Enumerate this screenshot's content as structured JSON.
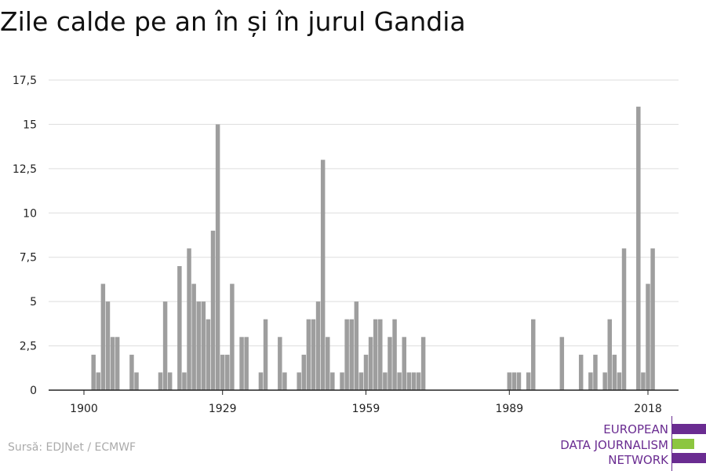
{
  "title": "Zile calde pe an în și în jurul Gandia",
  "source": "Sursă: EDJNet / ECMWF",
  "logo": {
    "line1": "EUROPEAN",
    "line2": "DATA JOURNALISM",
    "line3": "NETWORK",
    "purple": "#6a2c91",
    "green": "#8cc63f"
  },
  "colors": {
    "bar": "#9e9e9e",
    "grid": "#dddddd",
    "axis": "#222222"
  },
  "chart_data": {
    "type": "bar",
    "x_start": 1900,
    "x_end": 2019,
    "xticks": [
      1900,
      1929,
      1959,
      1989,
      2018
    ],
    "xtick_labels": [
      "1900",
      "1929",
      "1959",
      "1989",
      "2018"
    ],
    "yticks": [
      0,
      2.5,
      5,
      7.5,
      10,
      12.5,
      15,
      17.5
    ],
    "ytick_labels": [
      "0",
      "2,5",
      "5",
      "7,5",
      "10",
      "12,5",
      "15",
      "17,5"
    ],
    "ylim": [
      0,
      17.5
    ],
    "grid": true,
    "xlabel": "",
    "ylabel": "",
    "years": [
      1901,
      1902,
      1903,
      1904,
      1905,
      1906,
      1907,
      1908,
      1909,
      1910,
      1911,
      1912,
      1913,
      1914,
      1915,
      1916,
      1917,
      1918,
      1919,
      1920,
      1921,
      1922,
      1923,
      1924,
      1925,
      1926,
      1927,
      1928,
      1929,
      1930,
      1931,
      1932,
      1933,
      1934,
      1935,
      1936,
      1937,
      1938,
      1939,
      1940,
      1941,
      1942,
      1943,
      1944,
      1945,
      1946,
      1947,
      1948,
      1949,
      1950,
      1951,
      1952,
      1953,
      1954,
      1955,
      1956,
      1957,
      1958,
      1959,
      1960,
      1961,
      1962,
      1963,
      1964,
      1965,
      1966,
      1967,
      1968,
      1969,
      1970,
      1971,
      1972,
      1973,
      1974,
      1975,
      1976,
      1977,
      1978,
      1979,
      1980,
      1981,
      1982,
      1983,
      1984,
      1985,
      1986,
      1987,
      1988,
      1989,
      1990,
      1991,
      1992,
      1993,
      1994,
      1995,
      1996,
      1997,
      1998,
      1999,
      2000,
      2001,
      2002,
      2003,
      2004,
      2005,
      2006,
      2007,
      2008,
      2009,
      2010,
      2011,
      2012,
      2013,
      2014,
      2015,
      2016,
      2017,
      2018,
      2019
    ],
    "values": [
      0,
      2,
      1,
      6,
      5,
      3,
      3,
      0,
      0,
      2,
      1,
      0,
      0,
      0,
      0,
      1,
      5,
      1,
      0,
      7,
      1,
      8,
      6,
      5,
      5,
      4,
      9,
      15,
      2,
      2,
      6,
      0,
      3,
      3,
      0,
      0,
      1,
      4,
      0,
      0,
      3,
      1,
      0,
      0,
      1,
      2,
      4,
      4,
      5,
      13,
      3,
      1,
      0,
      1,
      4,
      4,
      5,
      1,
      2,
      3,
      4,
      4,
      1,
      3,
      4,
      1,
      3,
      1,
      1,
      1,
      3,
      0,
      0,
      0,
      0,
      0,
      0,
      0,
      0,
      0,
      0,
      0,
      0,
      0,
      0,
      0,
      0,
      0,
      1,
      1,
      1,
      0,
      1,
      4,
      0,
      0,
      0,
      0,
      0,
      3,
      0,
      0,
      0,
      2,
      0,
      1,
      2,
      0,
      1,
      4,
      2,
      1,
      8,
      0,
      0,
      16,
      1,
      6,
      8
    ]
  }
}
